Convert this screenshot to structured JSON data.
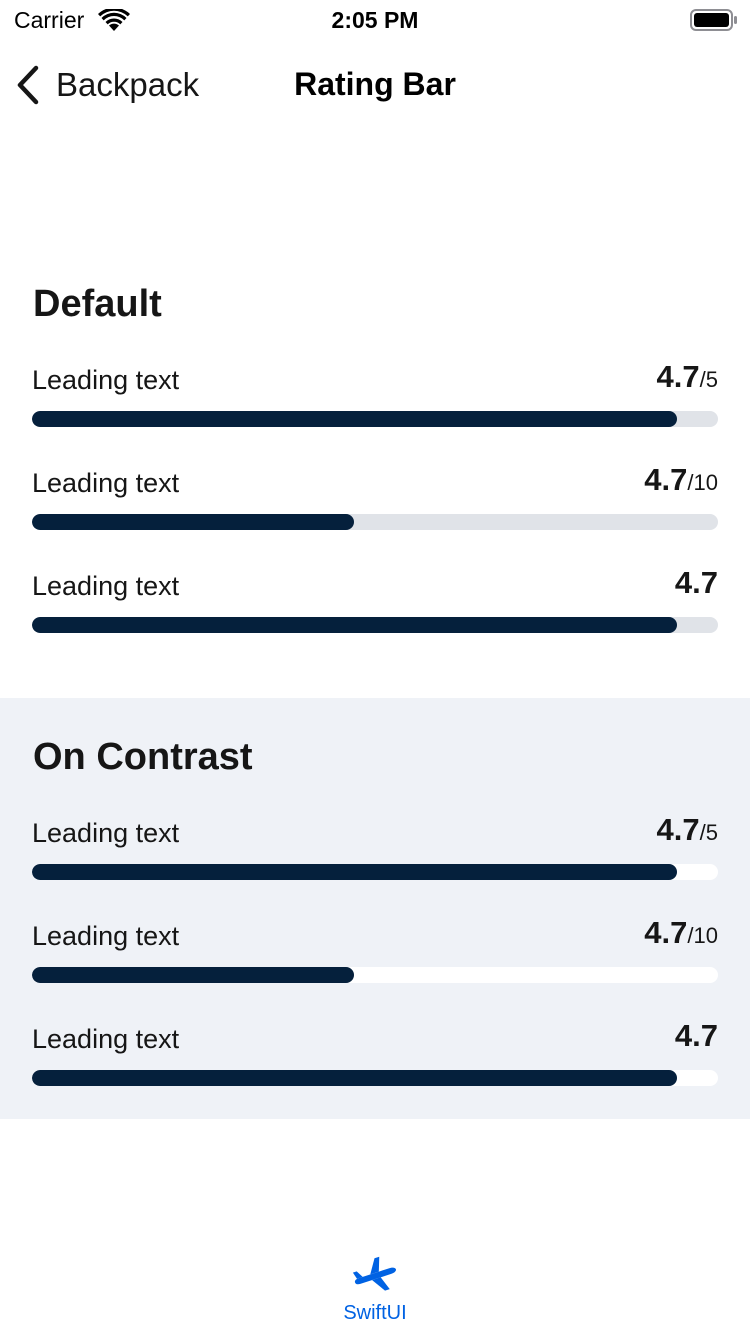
{
  "status_bar": {
    "carrier": "Carrier",
    "time": "2:05 PM",
    "wifi_icon": "wifi-icon",
    "battery_icon": "battery-icon"
  },
  "nav": {
    "back_label": "Backpack",
    "back_icon": "chevron-left-icon",
    "title": "Rating Bar"
  },
  "sections": [
    {
      "title": "Default",
      "rows": [
        {
          "label": "Leading text",
          "value": "4.7",
          "scale": "/5",
          "fraction": 0.94
        },
        {
          "label": "Leading text",
          "value": "4.7",
          "scale": "/10",
          "fraction": 0.47
        },
        {
          "label": "Leading text",
          "value": "4.7",
          "scale": "",
          "fraction": 0.94
        }
      ]
    },
    {
      "title": "On Contrast",
      "rows": [
        {
          "label": "Leading text",
          "value": "4.7",
          "scale": "/5",
          "fraction": 0.94
        },
        {
          "label": "Leading text",
          "value": "4.7",
          "scale": "/10",
          "fraction": 0.47
        },
        {
          "label": "Leading text",
          "value": "4.7",
          "scale": "",
          "fraction": 0.94
        }
      ]
    }
  ],
  "tab_bar": {
    "items": [
      {
        "label": "SwiftUI",
        "icon": "plane-icon",
        "selected": true
      }
    ]
  },
  "colors": {
    "bar_fill": "#05203c",
    "bar_track_default": "#e0e3e8",
    "bar_track_contrast": "#ffffff",
    "contrast_background": "#eff2f7",
    "accent": "#0062e3"
  }
}
